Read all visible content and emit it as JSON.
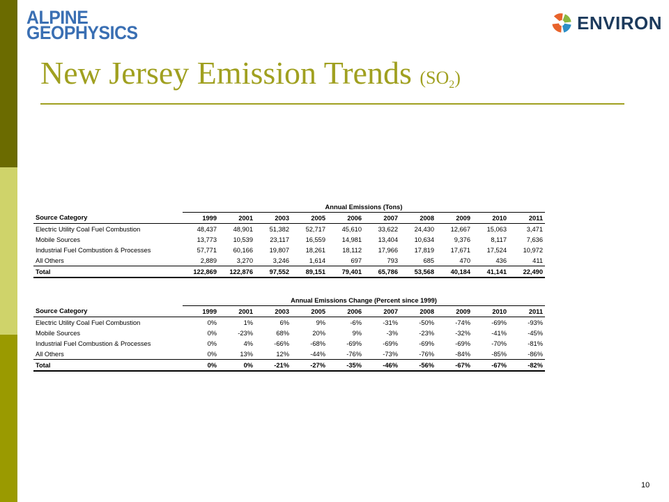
{
  "logos": {
    "alpine_line1": "ALPINE",
    "alpine_line2": "GEOPHYSICS",
    "environ": "ENVIRON"
  },
  "title": {
    "main": "New Jersey Emission Trends",
    "open": "(SO",
    "subscript": "2",
    "close": ")"
  },
  "table1": {
    "caption": "Annual Emissions (Tons)",
    "header": "Source Category",
    "years": [
      "1999",
      "2001",
      "2003",
      "2005",
      "2006",
      "2007",
      "2008",
      "2009",
      "2010",
      "2011"
    ],
    "rows": [
      {
        "name": "Electric Utility Coal Fuel Combustion",
        "values": [
          "48,437",
          "48,901",
          "51,382",
          "52,717",
          "45,610",
          "33,622",
          "24,430",
          "12,667",
          "15,063",
          "3,471"
        ]
      },
      {
        "name": "Mobile Sources",
        "values": [
          "13,773",
          "10,539",
          "23,117",
          "16,559",
          "14,981",
          "13,404",
          "10,634",
          "9,376",
          "8,117",
          "7,636"
        ]
      },
      {
        "name": "Industrial Fuel Combustion & Processes",
        "values": [
          "57,771",
          "60,166",
          "19,807",
          "18,261",
          "18,112",
          "17,966",
          "17,819",
          "17,671",
          "17,524",
          "10,972"
        ]
      },
      {
        "name": "All Others",
        "values": [
          "2,889",
          "3,270",
          "3,246",
          "1,614",
          "697",
          "793",
          "685",
          "470",
          "436",
          "411"
        ]
      }
    ],
    "total": {
      "name": "Total",
      "values": [
        "122,869",
        "122,876",
        "97,552",
        "89,151",
        "79,401",
        "65,786",
        "53,568",
        "40,184",
        "41,141",
        "22,490"
      ]
    }
  },
  "table2": {
    "caption": "Annual Emissions Change (Percent since 1999)",
    "header": "Source Category",
    "years": [
      "1999",
      "2001",
      "2003",
      "2005",
      "2006",
      "2007",
      "2008",
      "2009",
      "2010",
      "2011"
    ],
    "rows": [
      {
        "name": "Electric Utility Coal Fuel Combustion",
        "values": [
          "0%",
          "1%",
          "6%",
          "9%",
          "-6%",
          "-31%",
          "-50%",
          "-74%",
          "-69%",
          "-93%"
        ]
      },
      {
        "name": "Mobile Sources",
        "values": [
          "0%",
          "-23%",
          "68%",
          "20%",
          "9%",
          "-3%",
          "-23%",
          "-32%",
          "-41%",
          "-45%"
        ]
      },
      {
        "name": "Industrial Fuel Combustion & Processes",
        "values": [
          "0%",
          "4%",
          "-66%",
          "-68%",
          "-69%",
          "-69%",
          "-69%",
          "-69%",
          "-70%",
          "-81%"
        ]
      },
      {
        "name": "All Others",
        "values": [
          "0%",
          "13%",
          "12%",
          "-44%",
          "-76%",
          "-73%",
          "-76%",
          "-84%",
          "-85%",
          "-86%"
        ]
      }
    ],
    "total": {
      "name": "Total",
      "values": [
        "0%",
        "0%",
        "-21%",
        "-27%",
        "-35%",
        "-46%",
        "-56%",
        "-67%",
        "-67%",
        "-82%"
      ]
    }
  },
  "page_number": "10",
  "colors": {
    "title": "#a0a020",
    "bar_dark": "#6b6b00",
    "bar_light": "#cfd36a",
    "bar_bottom": "#9a9a00",
    "alpine_blue": "#3a6fb3",
    "environ_navy": "#1c3a5c"
  }
}
